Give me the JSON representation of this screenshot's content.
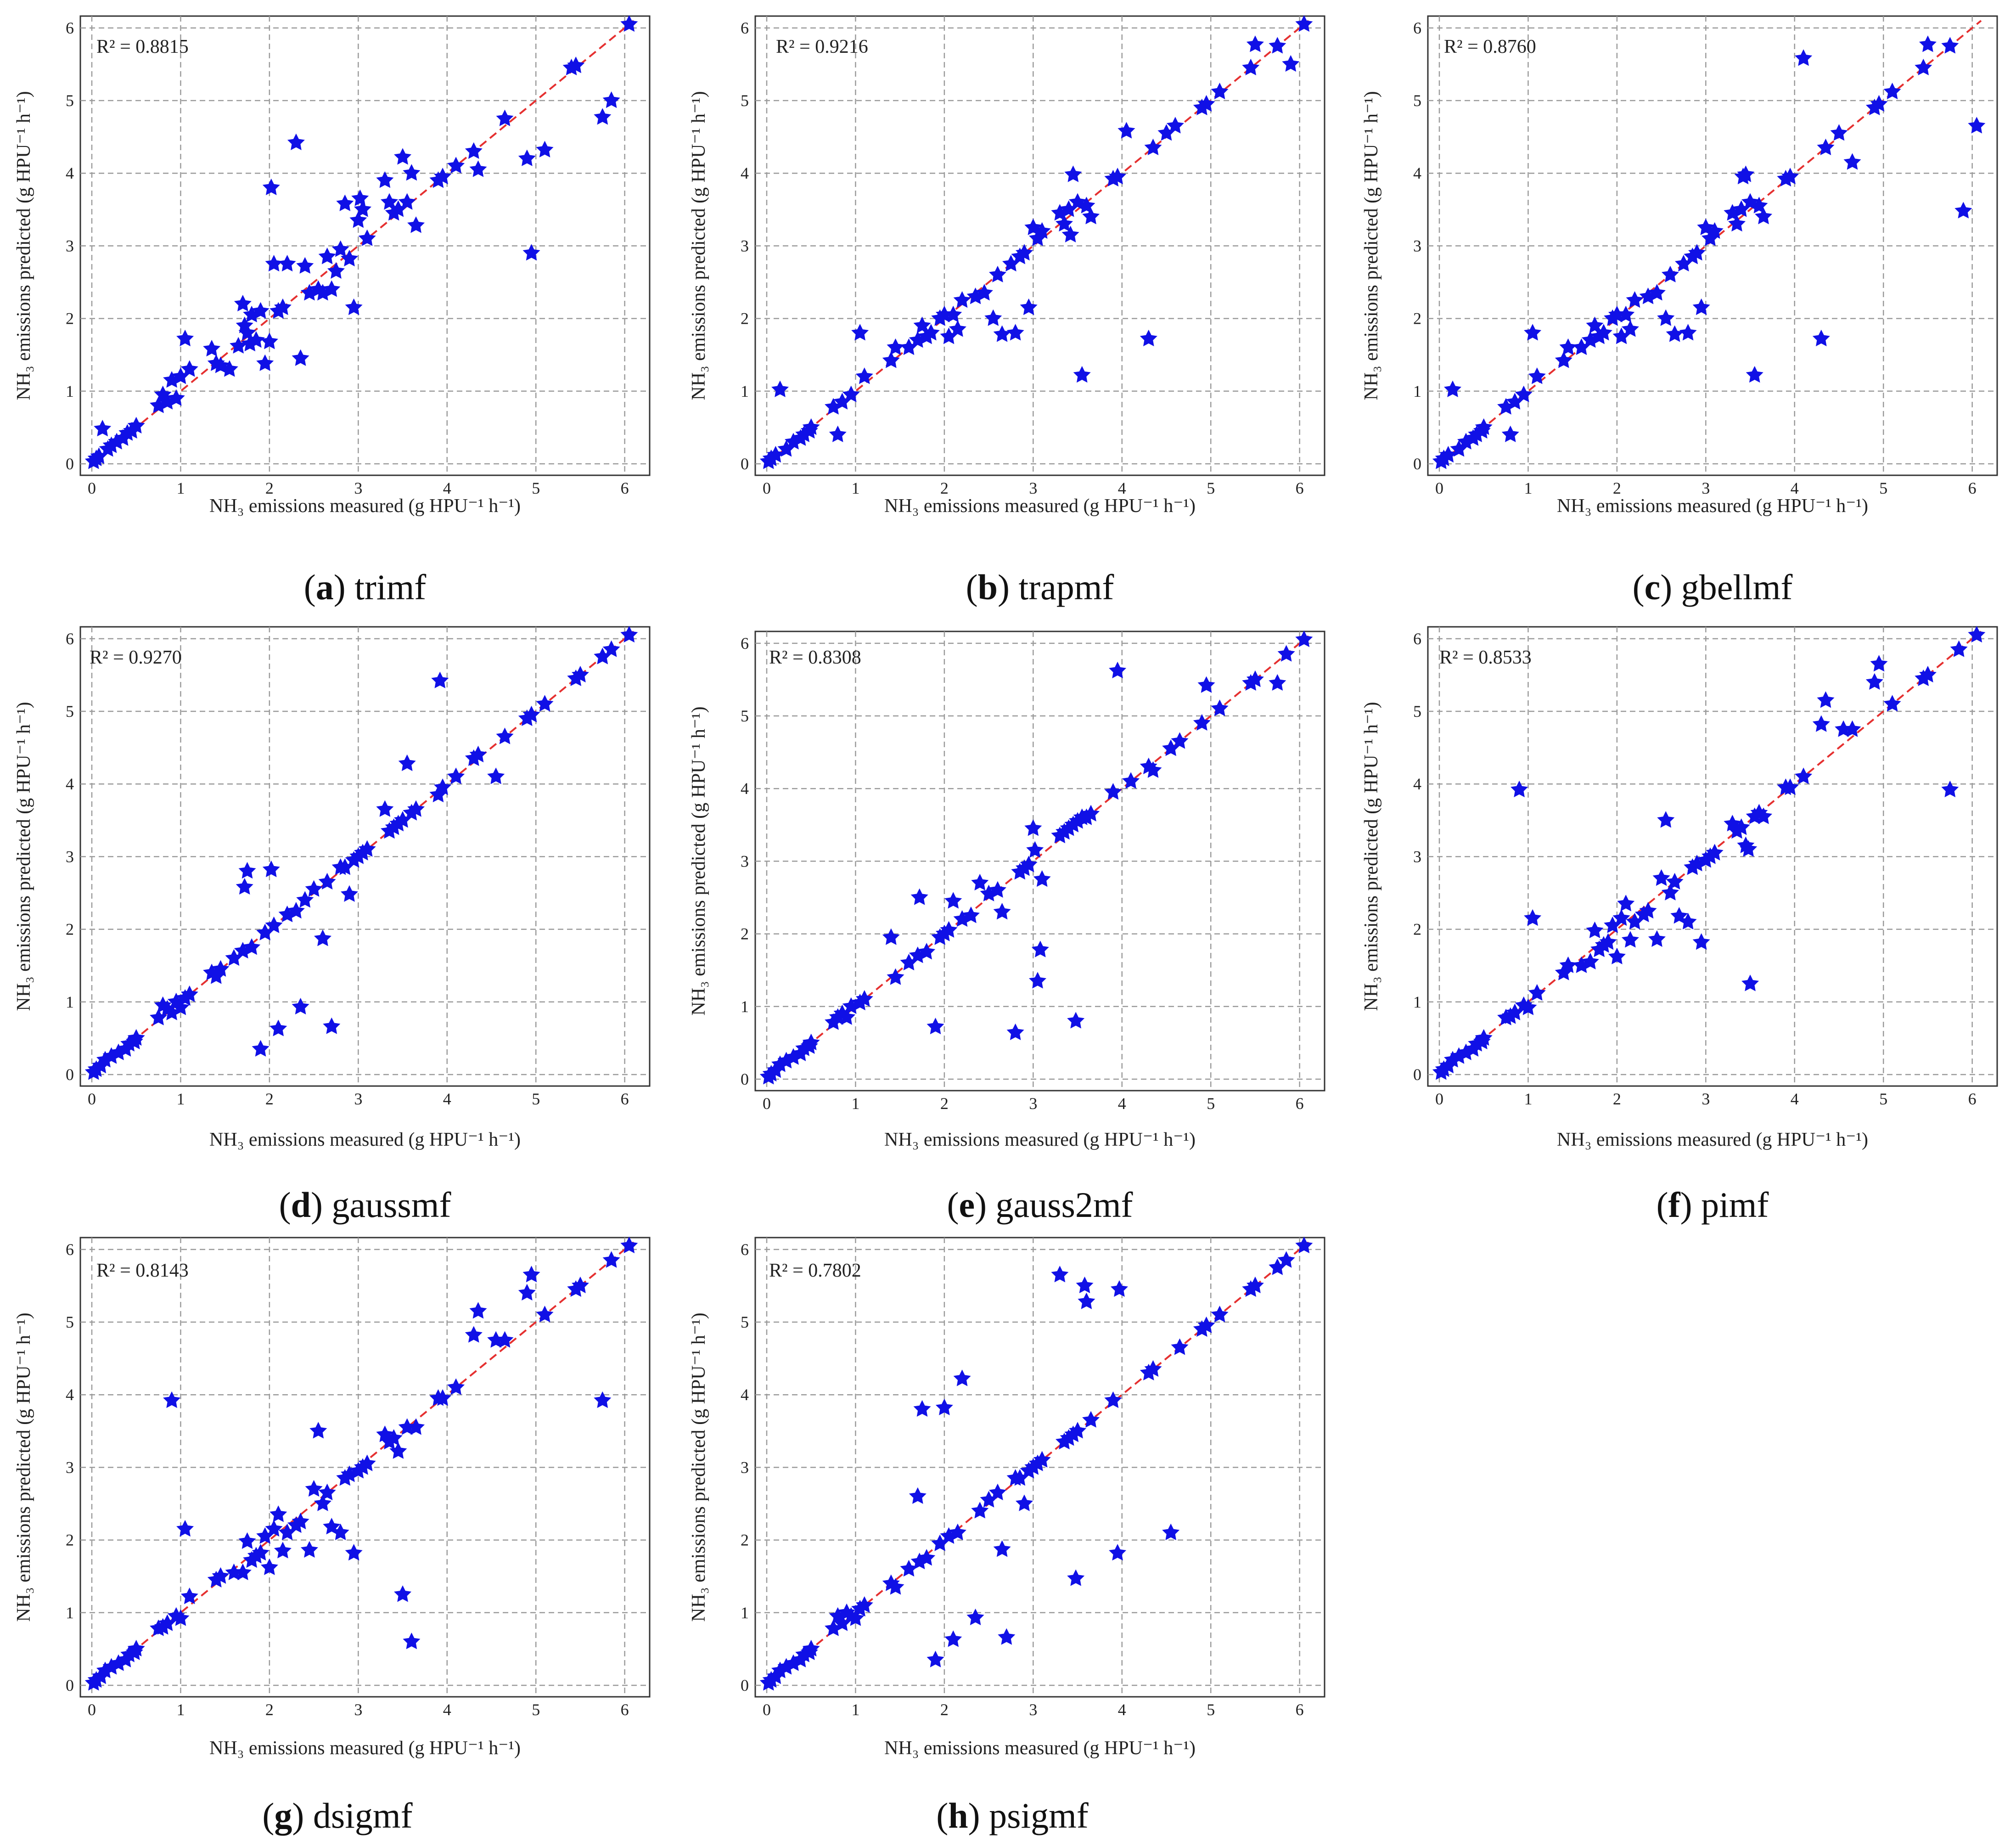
{
  "figure": {
    "xlabel": "NH₃ emissions measured (g HPU⁻¹ h⁻¹)",
    "ylabel": "NH₃ emissions predicted (g HPU⁻¹ h⁻¹)",
    "ticks": [
      "0",
      "1",
      "2",
      "3",
      "4",
      "5",
      "6"
    ]
  },
  "colors": {
    "points": "#1010e6",
    "diagonal": "#e53030",
    "grid": "#9a9a9a"
  },
  "chart_data": [
    {
      "type": "scatter",
      "letter": "a",
      "name": "trimf",
      "r2": "R² = 0.8815",
      "xlim": [
        0,
        6.1
      ],
      "ylim": [
        0,
        6.1
      ],
      "x": [
        0.02,
        0.05,
        0.08,
        0.12,
        0.18,
        0.22,
        0.28,
        0.35,
        0.4,
        0.45,
        0.5,
        0.75,
        0.8,
        0.85,
        0.9,
        0.95,
        1.0,
        1.05,
        1.1,
        1.35,
        1.4,
        1.45,
        1.55,
        1.65,
        1.7,
        1.72,
        1.75,
        1.78,
        1.8,
        1.85,
        1.9,
        1.95,
        2.0,
        2.02,
        2.05,
        2.1,
        2.15,
        2.2,
        2.3,
        2.35,
        2.4,
        2.45,
        2.55,
        2.6,
        2.65,
        2.7,
        2.75,
        2.8,
        2.85,
        2.9,
        2.95,
        3.0,
        3.02,
        3.05,
        3.1,
        3.3,
        3.35,
        3.4,
        3.45,
        3.5,
        3.55,
        3.6,
        3.65,
        3.9,
        3.95,
        4.1,
        4.3,
        4.35,
        4.65,
        4.9,
        4.95,
        5.1,
        5.4,
        5.45,
        5.75,
        5.85,
        6.05
      ],
      "y": [
        0.03,
        0.07,
        0.1,
        0.48,
        0.2,
        0.25,
        0.3,
        0.35,
        0.42,
        0.45,
        0.52,
        0.8,
        0.95,
        0.85,
        1.15,
        0.9,
        1.2,
        1.72,
        1.3,
        1.58,
        1.38,
        1.35,
        1.3,
        1.62,
        2.2,
        1.9,
        1.8,
        1.65,
        2.05,
        1.7,
        2.1,
        1.38,
        1.68,
        3.8,
        2.75,
        2.1,
        2.15,
        2.75,
        4.42,
        1.45,
        2.72,
        2.35,
        2.4,
        2.35,
        2.85,
        2.4,
        2.65,
        2.95,
        3.58,
        2.82,
        2.15,
        3.35,
        3.65,
        3.5,
        3.1,
        3.9,
        3.6,
        3.45,
        3.5,
        4.22,
        3.6,
        4.0,
        3.28,
        3.9,
        3.95,
        4.1,
        4.3,
        4.05,
        4.75,
        4.2,
        2.9,
        4.32,
        5.45,
        5.48,
        4.77,
        5.0,
        6.05
      ]
    },
    {
      "type": "scatter",
      "letter": "b",
      "name": "trapmf",
      "r2": "R² = 0.9216",
      "xlim": [
        0,
        6.1
      ],
      "ylim": [
        0,
        6.1
      ],
      "x": [
        0.02,
        0.05,
        0.1,
        0.15,
        0.22,
        0.3,
        0.38,
        0.42,
        0.48,
        0.5,
        0.75,
        0.8,
        0.85,
        0.95,
        1.05,
        1.1,
        1.4,
        1.45,
        1.6,
        1.7,
        1.75,
        1.8,
        1.85,
        1.95,
        2.0,
        2.05,
        2.1,
        2.15,
        2.2,
        2.35,
        2.45,
        2.55,
        2.6,
        2.65,
        2.75,
        2.8,
        2.85,
        2.9,
        2.95,
        3.0,
        3.05,
        3.1,
        3.3,
        3.35,
        3.4,
        3.42,
        3.45,
        3.5,
        3.55,
        3.6,
        3.65,
        3.9,
        3.95,
        4.05,
        4.3,
        4.35,
        4.5,
        4.6,
        4.9,
        4.95,
        5.1,
        5.45,
        5.5,
        5.75,
        5.9,
        6.05
      ],
      "y": [
        0.03,
        0.07,
        0.12,
        1.02,
        0.2,
        0.3,
        0.35,
        0.4,
        0.45,
        0.5,
        0.78,
        0.4,
        0.85,
        0.95,
        1.8,
        1.2,
        1.42,
        1.6,
        1.6,
        1.7,
        1.9,
        1.75,
        1.8,
        2.0,
        2.05,
        1.75,
        2.05,
        1.85,
        2.25,
        2.3,
        2.35,
        2.0,
        2.6,
        1.78,
        2.75,
        1.8,
        2.85,
        2.9,
        2.15,
        3.25,
        3.1,
        3.2,
        3.45,
        3.3,
        3.5,
        3.15,
        3.98,
        3.6,
        1.22,
        3.55,
        3.4,
        3.92,
        3.95,
        4.58,
        1.72,
        4.35,
        4.55,
        4.65,
        4.9,
        4.95,
        5.12,
        5.45,
        5.77,
        5.75,
        5.5,
        6.05
      ]
    },
    {
      "type": "scatter",
      "letter": "c",
      "name": "gbellmf",
      "r2": "R² = 0.8760",
      "xlim": [
        0,
        6.1
      ],
      "ylim": [
        0,
        6.1
      ],
      "x": [
        0.02,
        0.05,
        0.1,
        0.15,
        0.22,
        0.3,
        0.38,
        0.42,
        0.48,
        0.5,
        0.75,
        0.8,
        0.85,
        0.95,
        1.05,
        1.1,
        1.4,
        1.45,
        1.6,
        1.7,
        1.75,
        1.8,
        1.85,
        1.95,
        2.0,
        2.05,
        2.1,
        2.15,
        2.2,
        2.35,
        2.45,
        2.55,
        2.6,
        2.65,
        2.75,
        2.8,
        2.85,
        2.9,
        2.95,
        3.0,
        3.05,
        3.1,
        3.3,
        3.35,
        3.4,
        3.42,
        3.45,
        3.5,
        3.55,
        3.6,
        3.65,
        3.9,
        3.95,
        4.1,
        4.3,
        4.35,
        4.5,
        4.65,
        4.9,
        4.95,
        5.1,
        5.45,
        5.5,
        5.75,
        5.9,
        6.05
      ],
      "y": [
        0.03,
        0.07,
        0.12,
        1.02,
        0.2,
        0.3,
        0.35,
        0.4,
        0.45,
        0.5,
        0.78,
        0.4,
        0.85,
        0.95,
        1.8,
        1.2,
        1.42,
        1.6,
        1.6,
        1.7,
        1.9,
        1.75,
        1.8,
        2.0,
        2.05,
        1.75,
        2.05,
        1.85,
        2.25,
        2.3,
        2.35,
        2.0,
        2.6,
        1.78,
        2.75,
        1.8,
        2.85,
        2.9,
        2.15,
        3.25,
        3.1,
        3.2,
        3.45,
        3.3,
        3.5,
        3.95,
        3.98,
        3.6,
        1.22,
        3.55,
        3.4,
        3.92,
        3.95,
        5.58,
        1.72,
        4.35,
        4.55,
        4.15,
        4.9,
        4.95,
        5.12,
        5.45,
        5.77,
        5.75,
        3.48,
        4.65
      ]
    },
    {
      "type": "scatter",
      "letter": "d",
      "name": "gaussmf",
      "r2": "R² = 0.9270",
      "xlim": [
        0,
        6.1
      ],
      "ylim": [
        0,
        6.1
      ],
      "x": [
        0.02,
        0.05,
        0.1,
        0.15,
        0.22,
        0.3,
        0.38,
        0.42,
        0.48,
        0.5,
        0.75,
        0.8,
        0.85,
        0.9,
        0.95,
        1.0,
        1.05,
        1.1,
        1.35,
        1.4,
        1.45,
        1.6,
        1.7,
        1.72,
        1.75,
        1.8,
        1.9,
        1.95,
        2.02,
        2.05,
        2.1,
        2.2,
        2.3,
        2.35,
        2.4,
        2.5,
        2.6,
        2.65,
        2.7,
        2.8,
        2.85,
        2.9,
        2.95,
        3.0,
        3.05,
        3.1,
        3.3,
        3.35,
        3.4,
        3.45,
        3.5,
        3.55,
        3.6,
        3.65,
        3.9,
        3.92,
        3.95,
        4.1,
        4.3,
        4.35,
        4.55,
        4.65,
        4.9,
        4.95,
        5.1,
        5.45,
        5.5,
        5.75,
        5.85,
        6.05
      ],
      "y": [
        0.03,
        0.07,
        0.12,
        0.2,
        0.25,
        0.3,
        0.35,
        0.42,
        0.45,
        0.5,
        0.78,
        0.95,
        0.9,
        0.85,
        1.0,
        0.92,
        1.05,
        1.1,
        1.4,
        1.35,
        1.45,
        1.6,
        1.7,
        2.58,
        2.8,
        1.75,
        0.35,
        1.95,
        2.82,
        2.05,
        0.63,
        2.2,
        2.25,
        0.93,
        2.4,
        2.55,
        1.87,
        2.65,
        0.66,
        2.85,
        2.85,
        2.48,
        2.95,
        3.0,
        3.05,
        3.1,
        3.65,
        3.35,
        3.4,
        3.45,
        3.5,
        4.28,
        3.6,
        3.65,
        3.85,
        5.42,
        3.95,
        4.1,
        4.35,
        4.4,
        4.1,
        4.65,
        4.9,
        4.95,
        5.1,
        5.45,
        5.5,
        5.75,
        5.85,
        6.05
      ]
    },
    {
      "type": "scatter",
      "letter": "e",
      "name": "gauss2mf",
      "r2": "R² = 0.8308",
      "xlim": [
        0,
        6.1
      ],
      "ylim": [
        0,
        6.1
      ],
      "x": [
        0.02,
        0.05,
        0.1,
        0.15,
        0.22,
        0.3,
        0.38,
        0.42,
        0.48,
        0.5,
        0.75,
        0.8,
        0.85,
        0.9,
        0.95,
        1.05,
        1.1,
        1.4,
        1.45,
        1.6,
        1.7,
        1.72,
        1.8,
        1.9,
        1.95,
        2.0,
        2.05,
        2.1,
        2.2,
        2.3,
        2.4,
        2.5,
        2.6,
        2.65,
        2.8,
        2.85,
        2.9,
        2.95,
        3.0,
        3.02,
        3.05,
        3.08,
        3.1,
        3.3,
        3.35,
        3.4,
        3.45,
        3.48,
        3.5,
        3.55,
        3.6,
        3.65,
        3.9,
        3.95,
        4.1,
        4.3,
        4.35,
        4.55,
        4.65,
        4.9,
        4.95,
        5.1,
        5.45,
        5.5,
        5.75,
        5.85,
        6.05
      ],
      "y": [
        0.03,
        0.07,
        0.12,
        0.2,
        0.25,
        0.3,
        0.35,
        0.42,
        0.45,
        0.5,
        0.78,
        0.85,
        0.9,
        0.85,
        1.0,
        1.05,
        1.1,
        1.95,
        1.4,
        1.6,
        1.7,
        2.5,
        1.75,
        0.72,
        1.95,
        2.0,
        2.05,
        2.45,
        2.2,
        2.25,
        2.7,
        2.55,
        2.6,
        2.3,
        0.64,
        2.85,
        2.9,
        2.95,
        3.45,
        3.15,
        1.35,
        1.78,
        2.75,
        3.35,
        3.4,
        3.45,
        3.5,
        0.8,
        3.55,
        3.6,
        3.6,
        3.65,
        3.95,
        5.62,
        4.1,
        4.3,
        4.25,
        4.55,
        4.65,
        4.9,
        5.42,
        5.1,
        5.45,
        5.5,
        5.45,
        5.85,
        6.05
      ]
    },
    {
      "type": "scatter",
      "letter": "f",
      "name": "pimf",
      "r2": "R² = 0.8533",
      "xlim": [
        0,
        6.1
      ],
      "ylim": [
        0,
        6.1
      ],
      "x": [
        0.02,
        0.05,
        0.1,
        0.15,
        0.22,
        0.3,
        0.38,
        0.42,
        0.48,
        0.5,
        0.75,
        0.8,
        0.85,
        0.9,
        0.95,
        1.0,
        1.05,
        1.1,
        1.4,
        1.45,
        1.6,
        1.7,
        1.75,
        1.8,
        1.85,
        1.9,
        1.95,
        2.0,
        2.05,
        2.1,
        2.15,
        2.2,
        2.3,
        2.35,
        2.45,
        2.5,
        2.55,
        2.6,
        2.65,
        2.7,
        2.8,
        2.85,
        2.9,
        2.95,
        3.0,
        3.05,
        3.1,
        3.3,
        3.35,
        3.4,
        3.45,
        3.48,
        3.5,
        3.55,
        3.6,
        3.65,
        3.9,
        3.95,
        4.1,
        4.3,
        4.35,
        4.55,
        4.65,
        4.9,
        4.95,
        5.1,
        5.45,
        5.5,
        5.75,
        5.85,
        6.05
      ],
      "y": [
        0.03,
        0.07,
        0.12,
        0.2,
        0.25,
        0.3,
        0.35,
        0.42,
        0.45,
        0.5,
        0.78,
        0.8,
        0.85,
        3.92,
        0.95,
        0.92,
        2.15,
        1.12,
        1.4,
        1.5,
        1.5,
        1.55,
        1.98,
        1.72,
        1.78,
        1.82,
        2.05,
        1.62,
        2.15,
        2.35,
        1.85,
        2.1,
        2.2,
        2.25,
        1.86,
        2.7,
        3.5,
        2.5,
        2.65,
        2.18,
        2.1,
        2.85,
        2.9,
        1.82,
        2.95,
        3.0,
        3.05,
        3.45,
        3.35,
        3.4,
        3.15,
        3.1,
        1.25,
        3.55,
        3.6,
        3.55,
        3.95,
        3.95,
        4.1,
        4.82,
        5.15,
        4.75,
        4.75,
        5.4,
        5.65,
        5.1,
        5.45,
        5.5,
        3.92,
        5.85,
        6.05
      ]
    },
    {
      "type": "scatter",
      "letter": "g",
      "name": "dsigmf",
      "r2": "R² = 0.8143",
      "xlim": [
        0,
        6.1
      ],
      "ylim": [
        0,
        6.1
      ],
      "x": [
        0.02,
        0.05,
        0.1,
        0.15,
        0.22,
        0.3,
        0.38,
        0.42,
        0.48,
        0.5,
        0.75,
        0.8,
        0.85,
        0.9,
        0.95,
        1.0,
        1.05,
        1.1,
        1.4,
        1.45,
        1.6,
        1.7,
        1.75,
        1.8,
        1.85,
        1.9,
        1.95,
        2.0,
        2.05,
        2.1,
        2.15,
        2.2,
        2.3,
        2.35,
        2.45,
        2.5,
        2.55,
        2.6,
        2.65,
        2.7,
        2.8,
        2.85,
        2.9,
        2.95,
        3.0,
        3.05,
        3.1,
        3.3,
        3.35,
        3.4,
        3.45,
        3.5,
        3.55,
        3.6,
        3.65,
        3.9,
        3.95,
        4.1,
        4.3,
        4.35,
        4.55,
        4.65,
        4.9,
        4.95,
        5.1,
        5.45,
        5.5,
        5.75,
        5.85,
        6.05
      ],
      "y": [
        0.03,
        0.07,
        0.12,
        0.2,
        0.25,
        0.3,
        0.35,
        0.42,
        0.45,
        0.5,
        0.78,
        0.8,
        0.85,
        3.92,
        0.95,
        0.92,
        2.15,
        1.22,
        1.45,
        1.5,
        1.55,
        1.55,
        1.98,
        1.72,
        1.78,
        1.82,
        2.05,
        1.62,
        2.15,
        2.35,
        1.85,
        2.1,
        2.2,
        2.25,
        1.86,
        2.7,
        3.5,
        2.5,
        2.65,
        2.18,
        2.1,
        2.85,
        2.9,
        1.82,
        2.95,
        3.0,
        3.05,
        3.45,
        3.35,
        3.4,
        3.22,
        1.25,
        3.55,
        0.6,
        3.55,
        3.95,
        3.95,
        4.1,
        4.82,
        5.15,
        4.75,
        4.75,
        5.4,
        5.65,
        5.1,
        5.45,
        5.5,
        3.92,
        5.85,
        6.05
      ]
    },
    {
      "type": "scatter",
      "letter": "h",
      "name": "psigmf",
      "r2": "R² = 0.7802",
      "xlim": [
        0,
        6.1
      ],
      "ylim": [
        0,
        6.1
      ],
      "x": [
        0.02,
        0.05,
        0.1,
        0.15,
        0.22,
        0.3,
        0.38,
        0.42,
        0.48,
        0.5,
        0.75,
        0.8,
        0.85,
        0.9,
        0.95,
        1.0,
        1.05,
        1.1,
        1.4,
        1.45,
        1.6,
        1.7,
        1.72,
        1.75,
        1.8,
        1.9,
        1.95,
        2.0,
        2.05,
        2.1,
        2.15,
        2.2,
        2.35,
        2.4,
        2.5,
        2.6,
        2.65,
        2.7,
        2.8,
        2.85,
        2.9,
        2.95,
        3.0,
        3.05,
        3.1,
        3.3,
        3.35,
        3.4,
        3.45,
        3.48,
        3.5,
        3.58,
        3.6,
        3.65,
        3.9,
        3.95,
        3.97,
        4.3,
        4.35,
        4.55,
        4.65,
        4.9,
        4.95,
        5.1,
        5.45,
        5.5,
        5.75,
        5.85,
        6.05
      ],
      "y": [
        0.03,
        0.07,
        0.12,
        0.2,
        0.25,
        0.3,
        0.35,
        0.42,
        0.45,
        0.5,
        0.78,
        0.95,
        0.85,
        1.0,
        0.95,
        0.92,
        1.05,
        1.1,
        1.4,
        1.35,
        1.6,
        2.6,
        1.7,
        3.8,
        1.75,
        0.35,
        1.95,
        3.82,
        2.05,
        0.63,
        2.1,
        4.22,
        0.93,
        2.4,
        2.55,
        2.65,
        1.87,
        0.66,
        2.85,
        2.85,
        2.5,
        2.95,
        3.0,
        3.05,
        3.1,
        5.65,
        3.35,
        3.4,
        3.45,
        1.47,
        3.5,
        5.5,
        5.28,
        3.65,
        3.92,
        1.82,
        5.45,
        4.3,
        4.35,
        2.1,
        4.65,
        4.9,
        4.95,
        5.1,
        5.45,
        5.5,
        5.75,
        5.85,
        6.05
      ]
    }
  ]
}
